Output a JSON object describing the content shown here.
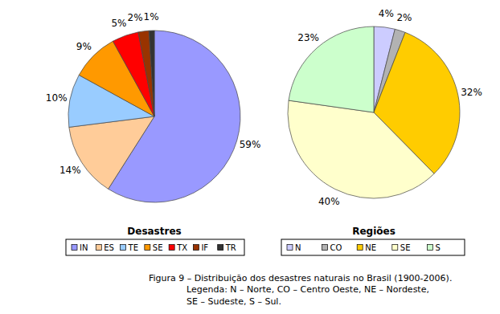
{
  "chart_data": [
    {
      "type": "pie",
      "title": "Desastres",
      "categories": [
        "IN",
        "ES",
        "TE",
        "SE",
        "TX",
        "IF",
        "TR"
      ],
      "values": [
        59,
        14,
        10,
        9,
        5,
        2,
        1
      ],
      "value_labels": [
        "59%",
        "14%",
        "10%",
        "9%",
        "5%",
        "2%",
        "1%"
      ],
      "colors": [
        "#9999ff",
        "#ffcc99",
        "#99ccff",
        "#ff9900",
        "#ff0000",
        "#993300",
        "#333333"
      ],
      "data_labels": true,
      "legend": "bottom"
    },
    {
      "type": "pie",
      "title": "Regiões",
      "categories": [
        "N",
        "CO",
        "NE",
        "SE",
        "S"
      ],
      "values": [
        4,
        2,
        32,
        40,
        23
      ],
      "value_labels": [
        "4%",
        "2%",
        "32%",
        "40%",
        "23%"
      ],
      "colors": [
        "#ccccff",
        "#b2b2b2",
        "#ffcc00",
        "#ffffcc",
        "#ccffcc"
      ],
      "data_labels": true,
      "legend": "bottom"
    }
  ],
  "caption": [
    "Figura 9 – Distribuição dos desastres naturais no Brasil (1900-2006).",
    "Legenda: N – Norte, CO – Centro Oeste, NE – Nordeste,",
    "SE – Sudeste, S – Sul."
  ]
}
